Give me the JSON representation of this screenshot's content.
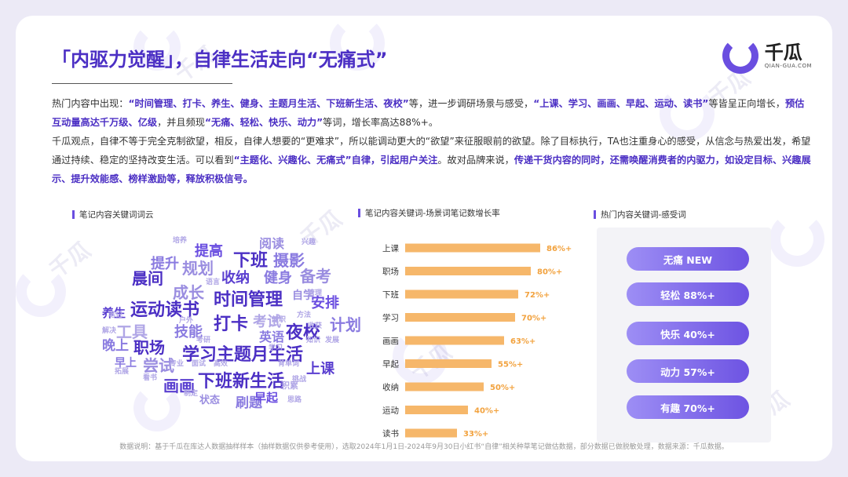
{
  "title": "「内驱力觉醒」，自律生活走向“无痛式”",
  "logo": {
    "name": "千瓜",
    "domain": "QIAN-GUA.COM"
  },
  "intro": {
    "p1_a": "热门内容中出现：",
    "p1_b": "“时间管理、打卡、养生、健身、主题月生活、下班新生活、夜校”",
    "p1_c": "等，进一步调研场景与感受，",
    "p1_d": "“上课、学习、画画、早起、运动、读书”",
    "p1_e": "等皆呈正向增长，",
    "p1_f": "预估互动量高达千万级、亿级",
    "p1_g": "，并且频现",
    "p1_h": "“无痛、轻松、快乐、动力”",
    "p1_i": "等词，增长率高达88%+。",
    "p2_a": "千瓜观点，自律不等于完全克制欲望，相反，自律人想要的“更难求”，所以能调动更大的“欲望”来征服眼前的欲望。除了目标执行，TA也注重身心的感受，从信念与热爱出发，希望通过持续、稳定的坚持改变生活。可以看到",
    "p2_b": "“主题化、兴趣化、无痛式”自律，引起用户关注",
    "p2_c": "。故对品牌来说，",
    "p2_d": "传递干货内容的同时，还需唤醒消费者的内驱力，如设定目标、兴趣展示、提升效能感、榜样激励等，释放积极信号。"
  },
  "sections": {
    "cloud": "笔记内容关键词词云",
    "bars": "笔记内容关键词-场景词笔记数增长率",
    "feel": "热门内容关键词-感受词"
  },
  "word_cloud": [
    "提高",
    "阅读",
    "兴趣",
    "培养",
    "下班",
    "摄影",
    "提升",
    "规划",
    "晨间",
    "收纳",
    "健身",
    "备考",
    "成长",
    "时间管理",
    "自学",
    "安排",
    "运动读书",
    "养生",
    "工具",
    "打卡",
    "考试",
    "计划",
    "技能",
    "夜校",
    "职场",
    "英语",
    "晚上",
    "学习主题月生活",
    "尝试",
    "上课",
    "画画",
    "下班新生活",
    "刷题",
    "早起",
    "状态",
    "笔记",
    "兼职",
    "方法",
    "知识",
    "发展",
    "专业",
    "早上",
    "拓展",
    "积累",
    "面试",
    "高效",
    "语言",
    "户外",
    "管理",
    "考研",
    "学习",
    "解决",
    "看书",
    "背单词",
    "挑战",
    "制定",
    "思路",
    "收获"
  ],
  "chart_data": {
    "type": "bar",
    "orientation": "horizontal",
    "title": "笔记内容关键词-场景词笔记数增长率",
    "categories": [
      "上课",
      "职场",
      "下班",
      "学习",
      "画画",
      "早起",
      "收纳",
      "运动",
      "读书"
    ],
    "values": [
      86,
      80,
      72,
      70,
      63,
      55,
      50,
      40,
      33
    ],
    "labels": [
      "86%+",
      "80%+",
      "72%+",
      "70%+",
      "63%+",
      "55%+",
      "50%+",
      "40%+",
      "33%+"
    ],
    "unit": "%",
    "bar_color": "#f6b76a",
    "label_color": "#f2a23e",
    "xlim": [
      0,
      100
    ]
  },
  "feelings": [
    {
      "label": "无痛 NEW"
    },
    {
      "label": "轻松 88%+"
    },
    {
      "label": "快乐 40%+"
    },
    {
      "label": "动力 57%+"
    },
    {
      "label": "有趣 70%+"
    }
  ],
  "footnote": "数据说明：基于千瓜在库达人数据抽样样本（抽样数据仅供参考使用），选取2024年1月1日-2024年9月30日小红书“自律”相关种草笔记做估数据，部分数据已做脱敏处理，数据来源：千瓜数据。",
  "colors": {
    "accent": "#4b2fc4",
    "purple": "#6a4ee0",
    "bar": "#f6b76a"
  }
}
